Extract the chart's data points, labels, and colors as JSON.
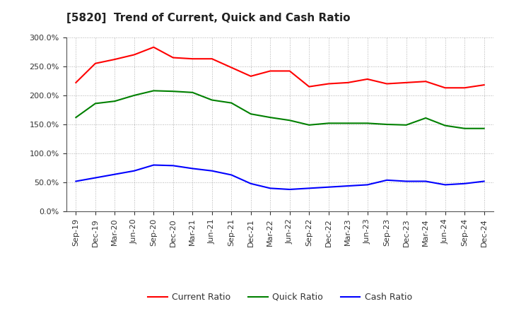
{
  "title": "[5820]  Trend of Current, Quick and Cash Ratio",
  "x_labels": [
    "Sep-19",
    "Dec-19",
    "Mar-20",
    "Jun-20",
    "Sep-20",
    "Dec-20",
    "Mar-21",
    "Jun-21",
    "Sep-21",
    "Dec-21",
    "Mar-22",
    "Jun-22",
    "Sep-22",
    "Dec-22",
    "Mar-23",
    "Jun-23",
    "Sep-23",
    "Dec-23",
    "Mar-24",
    "Jun-24",
    "Sep-24",
    "Dec-24"
  ],
  "current_ratio": [
    222,
    255,
    262,
    270,
    283,
    265,
    263,
    263,
    248,
    233,
    242,
    242,
    215,
    220,
    222,
    228,
    220,
    222,
    224,
    213,
    213,
    218
  ],
  "quick_ratio": [
    162,
    186,
    190,
    200,
    208,
    207,
    205,
    192,
    187,
    168,
    162,
    157,
    149,
    152,
    152,
    152,
    150,
    149,
    161,
    148,
    143,
    143
  ],
  "cash_ratio": [
    52,
    58,
    64,
    70,
    80,
    79,
    74,
    70,
    63,
    48,
    40,
    38,
    40,
    42,
    44,
    46,
    54,
    52,
    52,
    46,
    48,
    52
  ],
  "current_color": "#ff0000",
  "quick_color": "#008000",
  "cash_color": "#0000ff",
  "ylim": [
    0,
    300
  ],
  "yticks": [
    0,
    50,
    100,
    150,
    200,
    250,
    300
  ],
  "bg_color": "#ffffff",
  "grid_color": "#b0b0b0",
  "title_fontsize": 11,
  "tick_fontsize": 8,
  "legend_fontsize": 9
}
